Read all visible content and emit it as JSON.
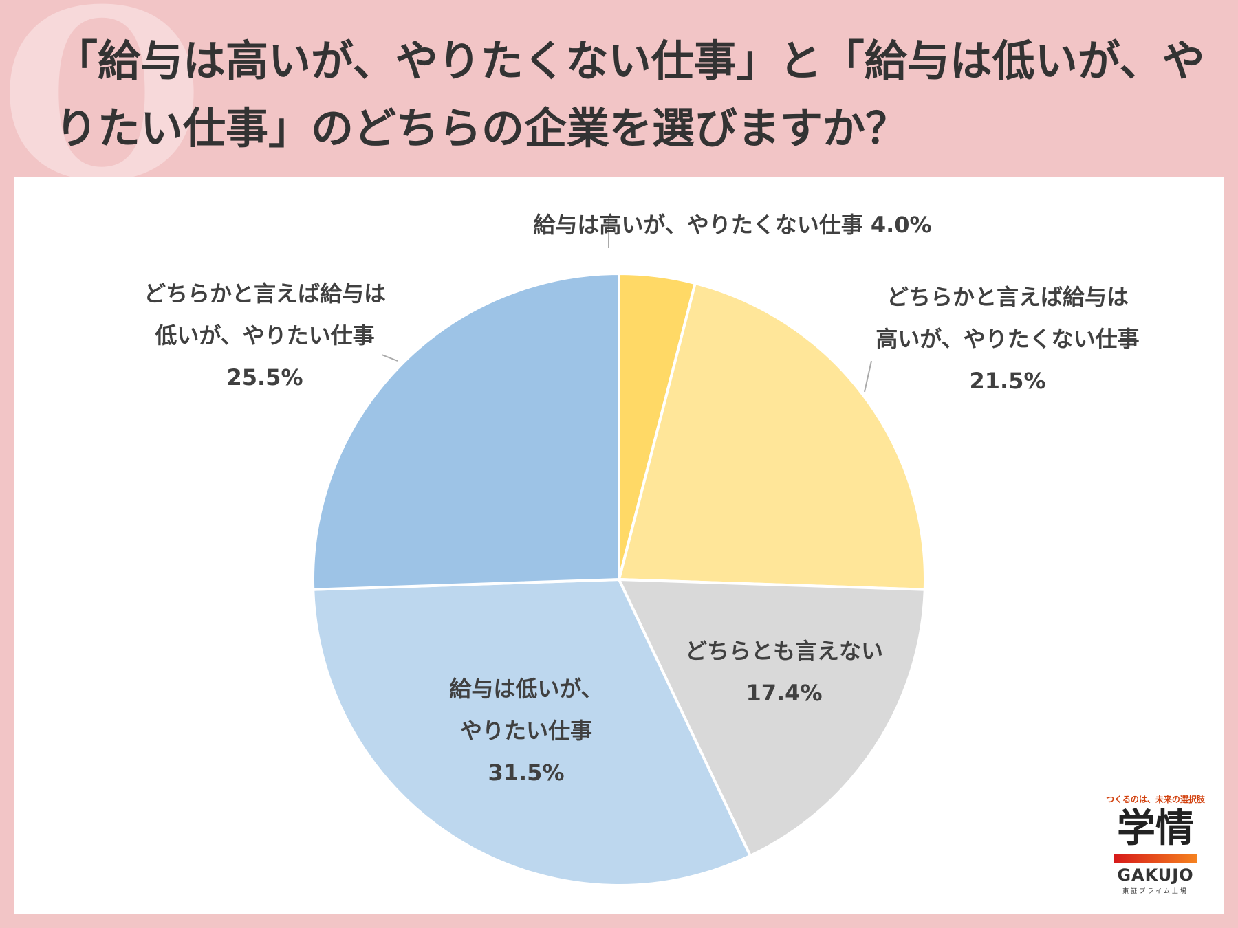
{
  "page": {
    "q_letter": "Q",
    "title": "「給与は高いが、やりたくない仕事」と「給与は低いが、やりたい仕事」のどちらの企業を選びますか？"
  },
  "colors": {
    "background": "#f2c5c6",
    "panel": "#ffffff"
  },
  "chart_data": {
    "type": "pie",
    "title": "",
    "slices": [
      {
        "label": "給与は高いが、やりたくない仕事",
        "value": 4.0,
        "value_text": "4.0%",
        "color": "#ffd966",
        "label_lines": [
          "給与は高いが、やりたくない仕事 4.0%"
        ]
      },
      {
        "label": "どちらかと言えば給与は高いが、やりたくない仕事",
        "value": 21.5,
        "value_text": "21.5%",
        "color": "#ffe699",
        "label_lines": [
          "どちらかと言えば給与は",
          "高いが、やりたくない仕事",
          "21.5%"
        ]
      },
      {
        "label": "どちらとも言えない",
        "value": 17.4,
        "value_text": "17.4%",
        "color": "#d9d9d9",
        "label_lines": [
          "どちらとも言えない",
          "17.4%"
        ]
      },
      {
        "label": "給与は低いが、やりたい仕事",
        "value": 31.5,
        "value_text": "31.5%",
        "color": "#bdd7ee",
        "label_lines": [
          "給与は低いが、",
          "やりたい仕事",
          "31.5%"
        ]
      },
      {
        "label": "どちらかと言えば給与は低いが、やりたい仕事",
        "value": 25.5,
        "value_text": "25.5%",
        "color": "#9dc3e6",
        "label_lines": [
          "どちらかと言えば給与は",
          "低いが、やりたい仕事",
          "25.5%"
        ]
      }
    ]
  },
  "logo": {
    "tagline": "つくるのは、未来の選択肢",
    "name_jp": "学情",
    "name_en": "GAKUJO",
    "sub": "東証プライム上場"
  }
}
